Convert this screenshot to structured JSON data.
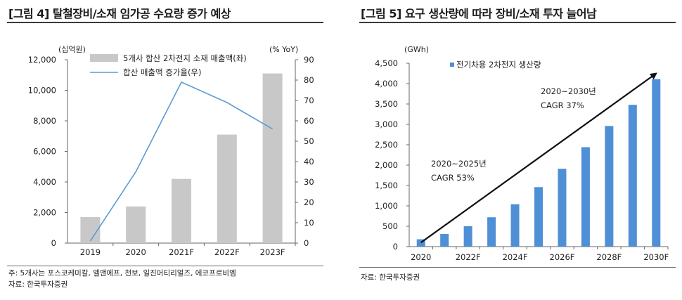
{
  "panels": [
    {
      "title": "[그림 4] 탈철장비/소재 임가공 수요량 증가 예상",
      "note1": "주: 5개사는 포스코케미칼, 엘앤에프, 천보, 일진머티리얼즈, 에코프로비엠",
      "note2": "자료: 한국투자증권"
    },
    {
      "title": "[그림 5] 요구 생산량에 따라 장비/소재 투자 늘어남",
      "note1": "자료: 한국투자증권"
    }
  ],
  "chart_data": [
    {
      "type": "bar",
      "unit_left": "(십억원)",
      "unit_right": "(% YoY)",
      "categories": [
        "2019",
        "2020",
        "2021F",
        "2022F",
        "2023F"
      ],
      "series": [
        {
          "name": "5개사 합산 2차전지 소재 매출액(좌)",
          "type": "bar",
          "axis": "left",
          "color": "#c8c8c8",
          "values": [
            1700,
            2400,
            4200,
            7100,
            11100
          ]
        },
        {
          "name": "합산 매출액 증가율(우)",
          "type": "line",
          "axis": "right",
          "color": "#5b9bd5",
          "values": [
            1,
            35,
            79,
            69,
            56
          ]
        }
      ],
      "ylim_left": [
        0,
        12000
      ],
      "yticks_left": [
        "0",
        "2,000",
        "4,000",
        "6,000",
        "8,000",
        "10,000",
        "12,000"
      ],
      "ylim_right": [
        0,
        90
      ],
      "yticks_right": [
        "0",
        "10",
        "20",
        "30",
        "40",
        "50",
        "60",
        "70",
        "80",
        "90"
      ],
      "grid": false,
      "legend": "top"
    },
    {
      "type": "bar",
      "unit_left": "(GWh)",
      "categories": [
        "2020",
        "2021F",
        "2022F",
        "2023F",
        "2024F",
        "2025F",
        "2026F",
        "2027F",
        "2028F",
        "2029F",
        "2030F"
      ],
      "xtick_labels": [
        "2020",
        "",
        "2022F",
        "",
        "2024F",
        "",
        "2026F",
        "",
        "2028F",
        "",
        "2030F"
      ],
      "series": [
        {
          "name": "전기차용 2차전지 생산량",
          "color": "#4f8fd6",
          "values": [
            180,
            310,
            500,
            720,
            1040,
            1460,
            1910,
            2440,
            2960,
            3480,
            4110
          ]
        }
      ],
      "ylim": [
        0,
        4500
      ],
      "yticks": [
        "0",
        "500",
        "1,000",
        "1,500",
        "2,000",
        "2,500",
        "3,000",
        "3,500",
        "4,000",
        "4,500"
      ],
      "grid": false,
      "legend": "top-left",
      "annotations": [
        {
          "line1": "2020~2025년",
          "line2": "CAGR 53%"
        },
        {
          "line1": "2020~2030년",
          "line2": "CAGR 37%"
        }
      ],
      "arrow": {
        "from": [
          0,
          100
        ],
        "to": [
          10,
          4250
        ]
      }
    }
  ]
}
